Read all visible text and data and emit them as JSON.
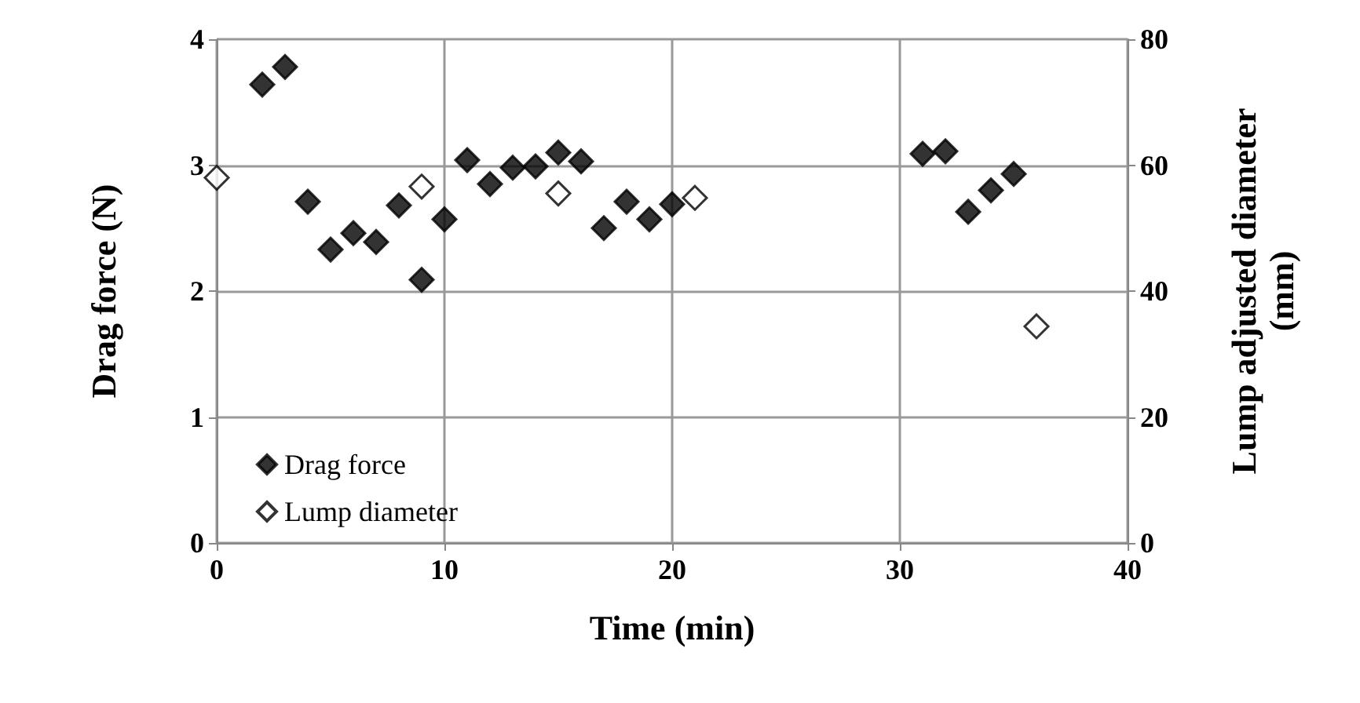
{
  "chart_data": {
    "type": "scatter",
    "xlabel": "Time (min)",
    "ylabel": "Drag force (N)",
    "y2label": "Lump adjusted diameter\n(mm)",
    "xlim": [
      0,
      40
    ],
    "xticks": [
      0,
      10,
      20,
      30,
      40
    ],
    "ylim": [
      0,
      4
    ],
    "yticks": [
      0,
      1,
      2,
      3,
      4
    ],
    "y2lim": [
      0,
      80
    ],
    "y2ticks": [
      0,
      20,
      40,
      60,
      80
    ],
    "grid": true,
    "legend": "bottom left",
    "marker": "diamond",
    "series": [
      {
        "name": "Drag force",
        "color": "#000000",
        "x": [
          2,
          3,
          4,
          5,
          6,
          7,
          8,
          9,
          10,
          11,
          12,
          13,
          14,
          15,
          16,
          17,
          18,
          19,
          20,
          31,
          32,
          33,
          34,
          35
        ],
        "values": [
          3.64,
          3.78,
          2.71,
          2.33,
          2.46,
          2.39,
          2.68,
          2.09,
          2.57,
          3.04,
          2.85,
          2.98,
          2.99,
          3.1,
          3.03,
          2.5,
          2.71,
          2.57,
          2.69,
          3.09,
          3.11,
          2.63,
          2.8,
          2.93
        ]
      },
      {
        "name": "Lump diameter",
        "color": "#ffffff",
        "axis": "y2",
        "x": [
          0,
          9,
          15,
          21,
          36
        ],
        "values": [
          58,
          56.6,
          55.5,
          54.8,
          34.4
        ]
      }
    ]
  }
}
